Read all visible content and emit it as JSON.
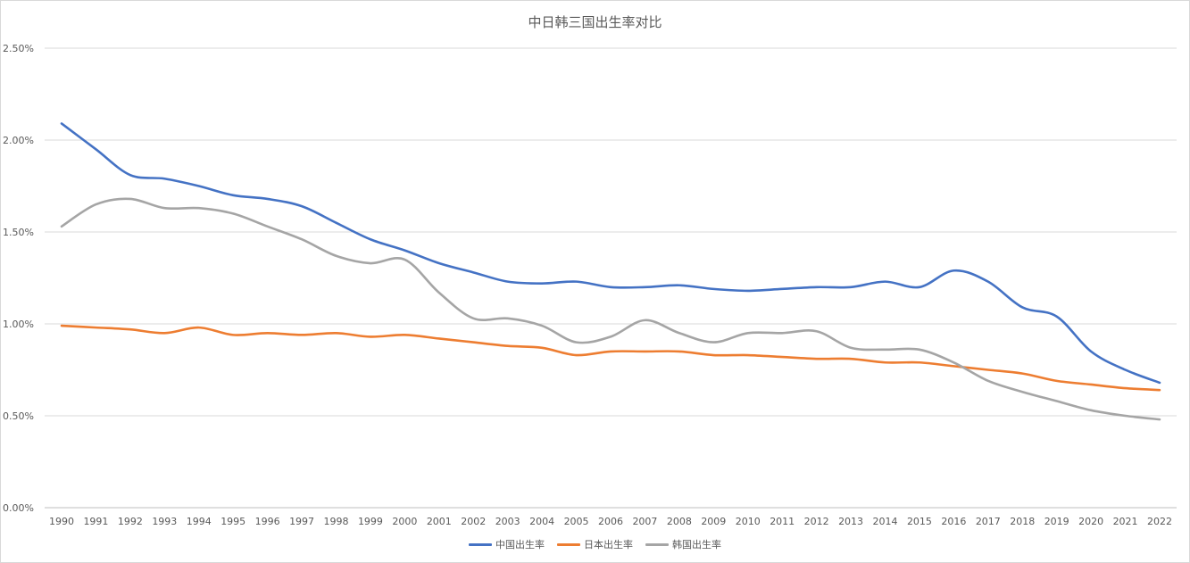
{
  "chart_data": {
    "type": "line",
    "title": "中日韩三国出生率对比",
    "xlabel": "",
    "ylabel": "",
    "ylim": [
      0,
      2.5
    ],
    "y_ticks": [
      "0.00%",
      "0.50%",
      "1.00%",
      "1.50%",
      "2.00%",
      "2.50%"
    ],
    "y_tick_values": [
      0,
      0.5,
      1.0,
      1.5,
      2.0,
      2.5
    ],
    "categories": [
      "1990",
      "1991",
      "1992",
      "1993",
      "1994",
      "1995",
      "1996",
      "1997",
      "1998",
      "1999",
      "2000",
      "2001",
      "2002",
      "2003",
      "2004",
      "2005",
      "2006",
      "2007",
      "2008",
      "2009",
      "2010",
      "2011",
      "2012",
      "2013",
      "2014",
      "2015",
      "2016",
      "2017",
      "2018",
      "2019",
      "2020",
      "2021",
      "2022"
    ],
    "grid": "horizontal",
    "legend_position": "bottom",
    "series": [
      {
        "name": "中国出生率",
        "color": "#4472c4",
        "values": [
          2.09,
          1.95,
          1.81,
          1.79,
          1.75,
          1.7,
          1.68,
          1.64,
          1.55,
          1.46,
          1.4,
          1.33,
          1.28,
          1.23,
          1.22,
          1.23,
          1.2,
          1.2,
          1.21,
          1.19,
          1.18,
          1.19,
          1.2,
          1.2,
          1.23,
          1.2,
          1.29,
          1.23,
          1.09,
          1.04,
          0.85,
          0.75,
          0.68
        ]
      },
      {
        "name": "日本出生率",
        "color": "#ed7d31",
        "values": [
          0.99,
          0.98,
          0.97,
          0.95,
          0.98,
          0.94,
          0.95,
          0.94,
          0.95,
          0.93,
          0.94,
          0.92,
          0.9,
          0.88,
          0.87,
          0.83,
          0.85,
          0.85,
          0.85,
          0.83,
          0.83,
          0.82,
          0.81,
          0.81,
          0.79,
          0.79,
          0.77,
          0.75,
          0.73,
          0.69,
          0.67,
          0.65,
          0.64
        ]
      },
      {
        "name": "韩国出生率",
        "color": "#a5a5a5",
        "values": [
          1.53,
          1.65,
          1.68,
          1.63,
          1.63,
          1.6,
          1.53,
          1.46,
          1.37,
          1.33,
          1.35,
          1.17,
          1.03,
          1.03,
          0.99,
          0.9,
          0.93,
          1.02,
          0.95,
          0.9,
          0.95,
          0.95,
          0.96,
          0.87,
          0.86,
          0.86,
          0.79,
          0.69,
          0.63,
          0.58,
          0.53,
          0.5,
          0.48
        ]
      }
    ]
  }
}
